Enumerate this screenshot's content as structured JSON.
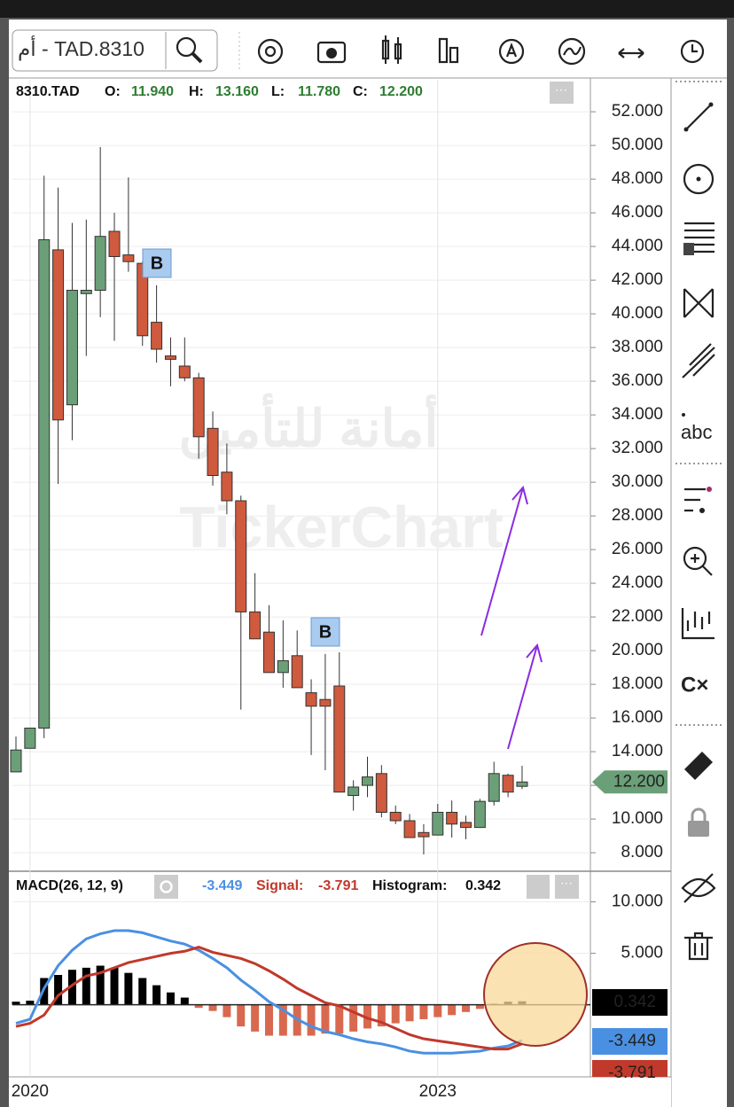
{
  "toolbar": {
    "search": "أم - TAD.8310",
    "text_tool": "abc"
  },
  "chart_data": [
    {
      "type": "candlestick",
      "title": "8310.TAD",
      "readout": [
        {
          "label": "O:",
          "value": "11.940"
        },
        {
          "label": "H:",
          "value": "13.160"
        },
        {
          "label": "L:",
          "value": "11.780"
        },
        {
          "label": "C:",
          "value": "12.200"
        }
      ],
      "last_price_label": "12.200",
      "watermark": [
        "أمانة للتأمين",
        "TickerChart"
      ],
      "signals": [
        "B",
        "B"
      ],
      "categories": [
        null,
        "2020",
        null,
        null,
        null,
        null,
        null,
        null,
        null,
        null,
        null,
        null,
        null,
        null,
        null,
        null,
        null,
        null,
        null,
        null,
        null,
        null,
        null,
        null,
        null,
        null,
        null,
        null,
        null,
        null,
        "2023",
        null,
        null,
        null,
        null,
        null,
        null
      ],
      "open": [
        12.8,
        14.2,
        15.4,
        43.8,
        34.6,
        41.2,
        41.4,
        44.9,
        43.5,
        43.0,
        39.5,
        37.5,
        36.9,
        36.2,
        33.2,
        30.6,
        28.9,
        22.3,
        21.1,
        18.7,
        19.7,
        17.5,
        17.1,
        17.9,
        11.4,
        12.0,
        12.7,
        10.4,
        9.9,
        9.2,
        9.05,
        10.4,
        9.8,
        9.5,
        11.05,
        12.6,
        11.94
      ],
      "high": [
        14.9,
        15.4,
        48.2,
        47.5,
        45.4,
        45.6,
        49.9,
        46.0,
        48.1,
        43.1,
        41.7,
        38.6,
        38.6,
        36.5,
        34.2,
        32.3,
        29.2,
        24.6,
        22.7,
        21.8,
        21.2,
        18.3,
        19.8,
        19.9,
        12.3,
        13.7,
        13.2,
        10.8,
        10.3,
        9.7,
        10.9,
        11.1,
        10.2,
        11.2,
        13.4,
        12.7,
        13.16
      ],
      "low": [
        12.8,
        14.2,
        14.8,
        29.9,
        32.5,
        37.5,
        39.8,
        38.4,
        42.5,
        38.1,
        37.1,
        35.7,
        36.0,
        31.4,
        29.8,
        28.1,
        16.5,
        20.7,
        18.7,
        17.8,
        17.8,
        13.8,
        12.9,
        11.6,
        10.5,
        11.3,
        10.1,
        9.7,
        8.9,
        7.9,
        9.05,
        8.9,
        8.8,
        9.5,
        10.8,
        11.3,
        11.78
      ],
      "close": [
        14.1,
        15.4,
        44.4,
        33.7,
        41.4,
        41.4,
        44.6,
        43.4,
        43.1,
        38.7,
        37.9,
        37.3,
        36.2,
        32.7,
        30.4,
        28.9,
        22.3,
        20.7,
        18.7,
        19.4,
        17.8,
        16.7,
        16.7,
        11.6,
        11.9,
        12.5,
        10.4,
        9.9,
        8.9,
        8.95,
        10.4,
        9.7,
        9.5,
        11.05,
        12.7,
        11.6,
        12.2
      ],
      "up_color": "#6b9f78",
      "down_color": "#cf5a3e",
      "ylim": [
        6.9,
        53.9
      ],
      "yticks": [
        {
          "value": 8,
          "label": "8.000"
        },
        {
          "value": 10,
          "label": "10.000"
        },
        {
          "value": 12,
          "label": "12.000"
        },
        {
          "value": 14,
          "label": "14.000"
        },
        {
          "value": 16,
          "label": "16.000"
        },
        {
          "value": 18,
          "label": "18.000"
        },
        {
          "value": 20,
          "label": "20.000"
        },
        {
          "value": 22,
          "label": "22.000"
        },
        {
          "value": 24,
          "label": "24.000"
        },
        {
          "value": 26,
          "label": "26.000"
        },
        {
          "value": 28,
          "label": "28.000"
        },
        {
          "value": 30,
          "label": "30.000"
        },
        {
          "value": 32,
          "label": "32.000"
        },
        {
          "value": 34,
          "label": "34.000"
        },
        {
          "value": 36,
          "label": "36.000"
        },
        {
          "value": 38,
          "label": "38.000"
        },
        {
          "value": 40,
          "label": "40.000"
        },
        {
          "value": 42,
          "label": "42.000"
        },
        {
          "value": 44,
          "label": "44.000"
        },
        {
          "value": 46,
          "label": "46.000"
        },
        {
          "value": 48,
          "label": "48.000"
        },
        {
          "value": 50,
          "label": "50.000"
        },
        {
          "value": 52,
          "label": "52.000"
        }
      ],
      "grid": true
    },
    {
      "type": "macd",
      "title": "MACD",
      "params": "(26, 12, 9)",
      "ylim": [
        -7,
        12.8
      ],
      "yticks": [
        {
          "value": 5,
          "label": "5.000"
        },
        {
          "value": 10,
          "label": "10.000"
        }
      ],
      "grid": true,
      "series": [
        {
          "type": "line",
          "color": "#4a90e2",
          "readout": "-3.449",
          "values": [
            -1.8,
            -1.4,
            1.6,
            3.8,
            5.3,
            6.4,
            6.9,
            7.2,
            7.2,
            7.0,
            6.6,
            6.2,
            5.9,
            5.3,
            4.5,
            3.6,
            2.4,
            1.4,
            0.3,
            -0.5,
            -1.4,
            -2.1,
            -2.6,
            -2.9,
            -3.3,
            -3.6,
            -3.8,
            -4.1,
            -4.5,
            -4.7,
            -4.7,
            -4.7,
            -4.6,
            -4.5,
            -4.2,
            -4.0,
            -3.449
          ]
        },
        {
          "type": "line",
          "name": "Signal:",
          "color": "#c0392b",
          "readout": "-3.791",
          "values": [
            -2.1,
            -1.8,
            -1.0,
            0.9,
            1.9,
            2.8,
            3.1,
            3.6,
            4.1,
            4.4,
            4.7,
            5.0,
            5.2,
            5.6,
            5.1,
            4.8,
            4.5,
            4.0,
            3.3,
            2.5,
            1.6,
            0.9,
            0.2,
            -0.1,
            -0.7,
            -1.3,
            -1.7,
            -2.3,
            -2.9,
            -3.3,
            -3.5,
            -3.7,
            -3.9,
            -4.1,
            -4.3,
            -4.3,
            -3.791
          ]
        },
        {
          "type": "bar",
          "name": "Histogram:",
          "color": "#000000",
          "negative_color": "#d8694f",
          "readout": "0.342",
          "values": [
            0.3,
            0.4,
            2.6,
            2.9,
            3.4,
            3.6,
            3.8,
            3.6,
            3.1,
            2.6,
            1.9,
            1.2,
            0.7,
            -0.3,
            -0.6,
            -1.2,
            -2.1,
            -2.6,
            -3.0,
            -3.0,
            -3.0,
            -3.0,
            -2.8,
            -2.8,
            -2.6,
            -2.3,
            -2.1,
            -1.8,
            -1.6,
            -1.4,
            -1.2,
            -1.0,
            -0.7,
            -0.4,
            0.1,
            0.3,
            0.342
          ]
        }
      ]
    }
  ]
}
